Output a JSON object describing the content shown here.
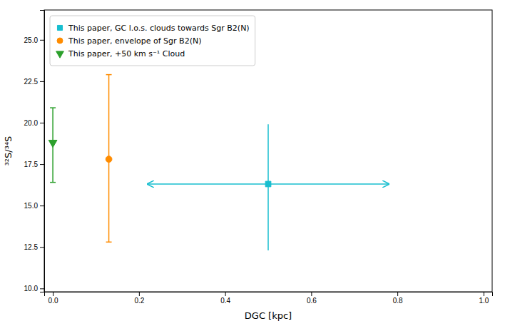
{
  "chart_data": {
    "type": "scatter",
    "xlabel": "DGC [kpc]",
    "ylabel": "³²S/³⁴S",
    "xlim": [
      -0.02,
      1.02
    ],
    "ylim": [
      9.8,
      26.8
    ],
    "xticks": [
      {
        "value": 0.0,
        "label": "0.0"
      },
      0.2,
      0.4,
      0.6,
      0.8,
      {
        "value": 1.0,
        "label": "1.0"
      }
    ],
    "yticks": [
      {
        "value": 10.0,
        "label": "10.0"
      },
      12.5,
      {
        "value": 15.0,
        "label": "15.0"
      },
      17.5,
      {
        "value": 20.0,
        "label": "20.0"
      },
      22.5,
      {
        "value": 25.0,
        "label": "25.0"
      }
    ],
    "grid": false,
    "legend": "upper left",
    "series": [
      {
        "name": "This paper, GC l.o.s. clouds towards Sgr B2(N)",
        "color": "#17becf",
        "marker": "square",
        "x": [
          0.5
        ],
        "values": [
          16.3
        ],
        "yerr_lo": [
          4.0
        ],
        "yerr_hi": [
          3.6
        ],
        "xerr_lo": [
          0.28
        ],
        "xerr_hi": [
          0.28
        ]
      },
      {
        "name": "This paper, envelope of Sgr B2(N)",
        "color": "#ff8c00",
        "marker": "circle",
        "x": [
          0.13
        ],
        "values": [
          17.8
        ],
        "yerr_lo": [
          5.0
        ],
        "yerr_hi": [
          5.1
        ]
      },
      {
        "name": "This paper, +50 km s⁻¹ Cloud",
        "color": "#2ca02c",
        "marker": "triangle-down",
        "x": [
          0.0
        ],
        "values": [
          18.8
        ],
        "yerr_lo": [
          2.4
        ],
        "yerr_hi": [
          2.1
        ]
      }
    ]
  }
}
